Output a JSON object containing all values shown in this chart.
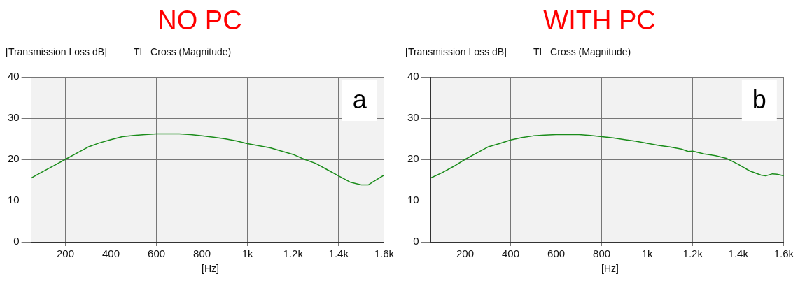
{
  "chart_data": [
    {
      "type": "line",
      "title": "NO PC",
      "ylabel": "[Transmission Loss dB]",
      "subtitle": "TL_Cross (Magnitude)",
      "xlabel": "[Hz]",
      "annotations": [
        "a"
      ],
      "legend": false,
      "grid": true,
      "marker": "none",
      "line_style": "solid",
      "x": [
        50,
        100,
        150,
        200,
        250,
        300,
        350,
        400,
        450,
        500,
        550,
        600,
        700,
        750,
        800,
        850,
        900,
        950,
        1000,
        1050,
        1100,
        1150,
        1200,
        1250,
        1300,
        1350,
        1400,
        1450,
        1500,
        1530,
        1550,
        1600
      ],
      "series": [
        {
          "color": "#1a8c1a",
          "values": [
            15.5,
            17,
            18.5,
            20,
            21.5,
            23,
            24,
            24.8,
            25.5,
            25.8,
            26,
            26.2,
            26.2,
            26,
            25.7,
            25.4,
            25,
            24.5,
            23.8,
            23.3,
            22.8,
            22,
            21.2,
            20,
            19,
            17.5,
            16,
            14.5,
            13.8,
            13.8,
            14.5,
            16.2
          ]
        }
      ],
      "xlim": [
        50,
        1600
      ],
      "ylim": [
        0,
        40
      ],
      "xticks": [
        200,
        400,
        600,
        800,
        {
          "value": 1000,
          "label": "1k"
        },
        {
          "value": 1200,
          "label": "1.2k"
        },
        {
          "value": 1400,
          "label": "1.4k"
        },
        {
          "value": 1600,
          "label": "1.6k"
        }
      ],
      "yticks": [
        0,
        10,
        20,
        30,
        40
      ]
    },
    {
      "type": "line",
      "title": "WITH PC",
      "ylabel": "[Transmission Loss dB]",
      "subtitle": "TL_Cross (Magnitude)",
      "xlabel": "[Hz]",
      "annotations": [
        "b"
      ],
      "legend": false,
      "grid": true,
      "marker": "none",
      "line_style": "solid",
      "x": [
        50,
        100,
        150,
        200,
        250,
        300,
        350,
        400,
        450,
        500,
        550,
        600,
        700,
        750,
        800,
        850,
        900,
        950,
        1000,
        1050,
        1100,
        1150,
        1180,
        1200,
        1250,
        1300,
        1350,
        1400,
        1450,
        1500,
        1520,
        1550,
        1570,
        1600
      ],
      "series": [
        {
          "color": "#1a8c1a",
          "values": [
            15.5,
            16.8,
            18.3,
            20,
            21.5,
            23,
            23.8,
            24.7,
            25.3,
            25.7,
            25.9,
            26,
            26,
            25.8,
            25.5,
            25.2,
            24.8,
            24.4,
            23.9,
            23.4,
            23,
            22.5,
            21.9,
            22,
            21.3,
            20.9,
            20.2,
            18.8,
            17.2,
            16.2,
            16,
            16.5,
            16.4,
            16
          ]
        }
      ],
      "xlim": [
        50,
        1600
      ],
      "ylim": [
        0,
        40
      ],
      "xticks": [
        200,
        400,
        600,
        800,
        {
          "value": 1000,
          "label": "1k"
        },
        {
          "value": 1200,
          "label": "1.2k"
        },
        {
          "value": 1400,
          "label": "1.4k"
        },
        {
          "value": 1600,
          "label": "1.6k"
        }
      ],
      "yticks": [
        0,
        10,
        20,
        30,
        40
      ]
    }
  ]
}
